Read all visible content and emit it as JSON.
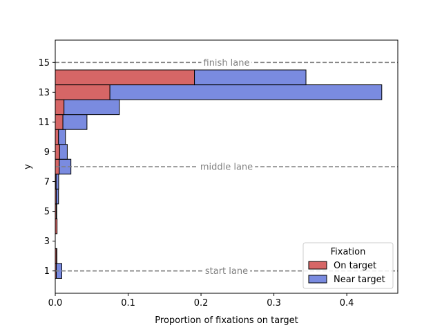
{
  "chart_data": {
    "type": "bar",
    "orientation": "horizontal",
    "stacked": true,
    "xlabel": "Proportion of fixations on target",
    "ylabel": "y",
    "xlim": [
      0,
      0.47
    ],
    "ylim": [
      -0.5,
      16.5
    ],
    "x_ticks": [
      "0.0",
      "0.1",
      "0.2",
      "0.3",
      "0.4"
    ],
    "y_ticks": [
      "1",
      "3",
      "5",
      "7",
      "9",
      "11",
      "13",
      "15"
    ],
    "grid": false,
    "legend": {
      "title": "Fixation",
      "placement": "lower-right",
      "entries": [
        "On target",
        "Near target"
      ]
    },
    "bins": [
      1,
      2,
      3,
      4,
      5,
      6,
      7,
      8,
      9,
      10,
      11,
      12,
      13,
      14
    ],
    "series": [
      {
        "name": "On target",
        "color": "#d66666",
        "values": [
          0.0015,
          0.0018,
          0.0,
          0.0025,
          0.0015,
          0.0015,
          0.0012,
          0.0055,
          0.006,
          0.0045,
          0.0105,
          0.012,
          0.075,
          0.191
        ]
      },
      {
        "name": "Near target",
        "color": "#7a8be0",
        "values": [
          0.0075,
          0.0005,
          0.0,
          0.0,
          0.0005,
          0.003,
          0.0035,
          0.016,
          0.0105,
          0.0095,
          0.033,
          0.076,
          0.373,
          0.153
        ]
      }
    ],
    "reference_lines": [
      {
        "y": 1,
        "label": "start lane",
        "color": "#808080"
      },
      {
        "y": 8,
        "label": "middle lane",
        "color": "#808080"
      },
      {
        "y": 15,
        "label": "finish lane",
        "color": "#808080"
      }
    ]
  }
}
